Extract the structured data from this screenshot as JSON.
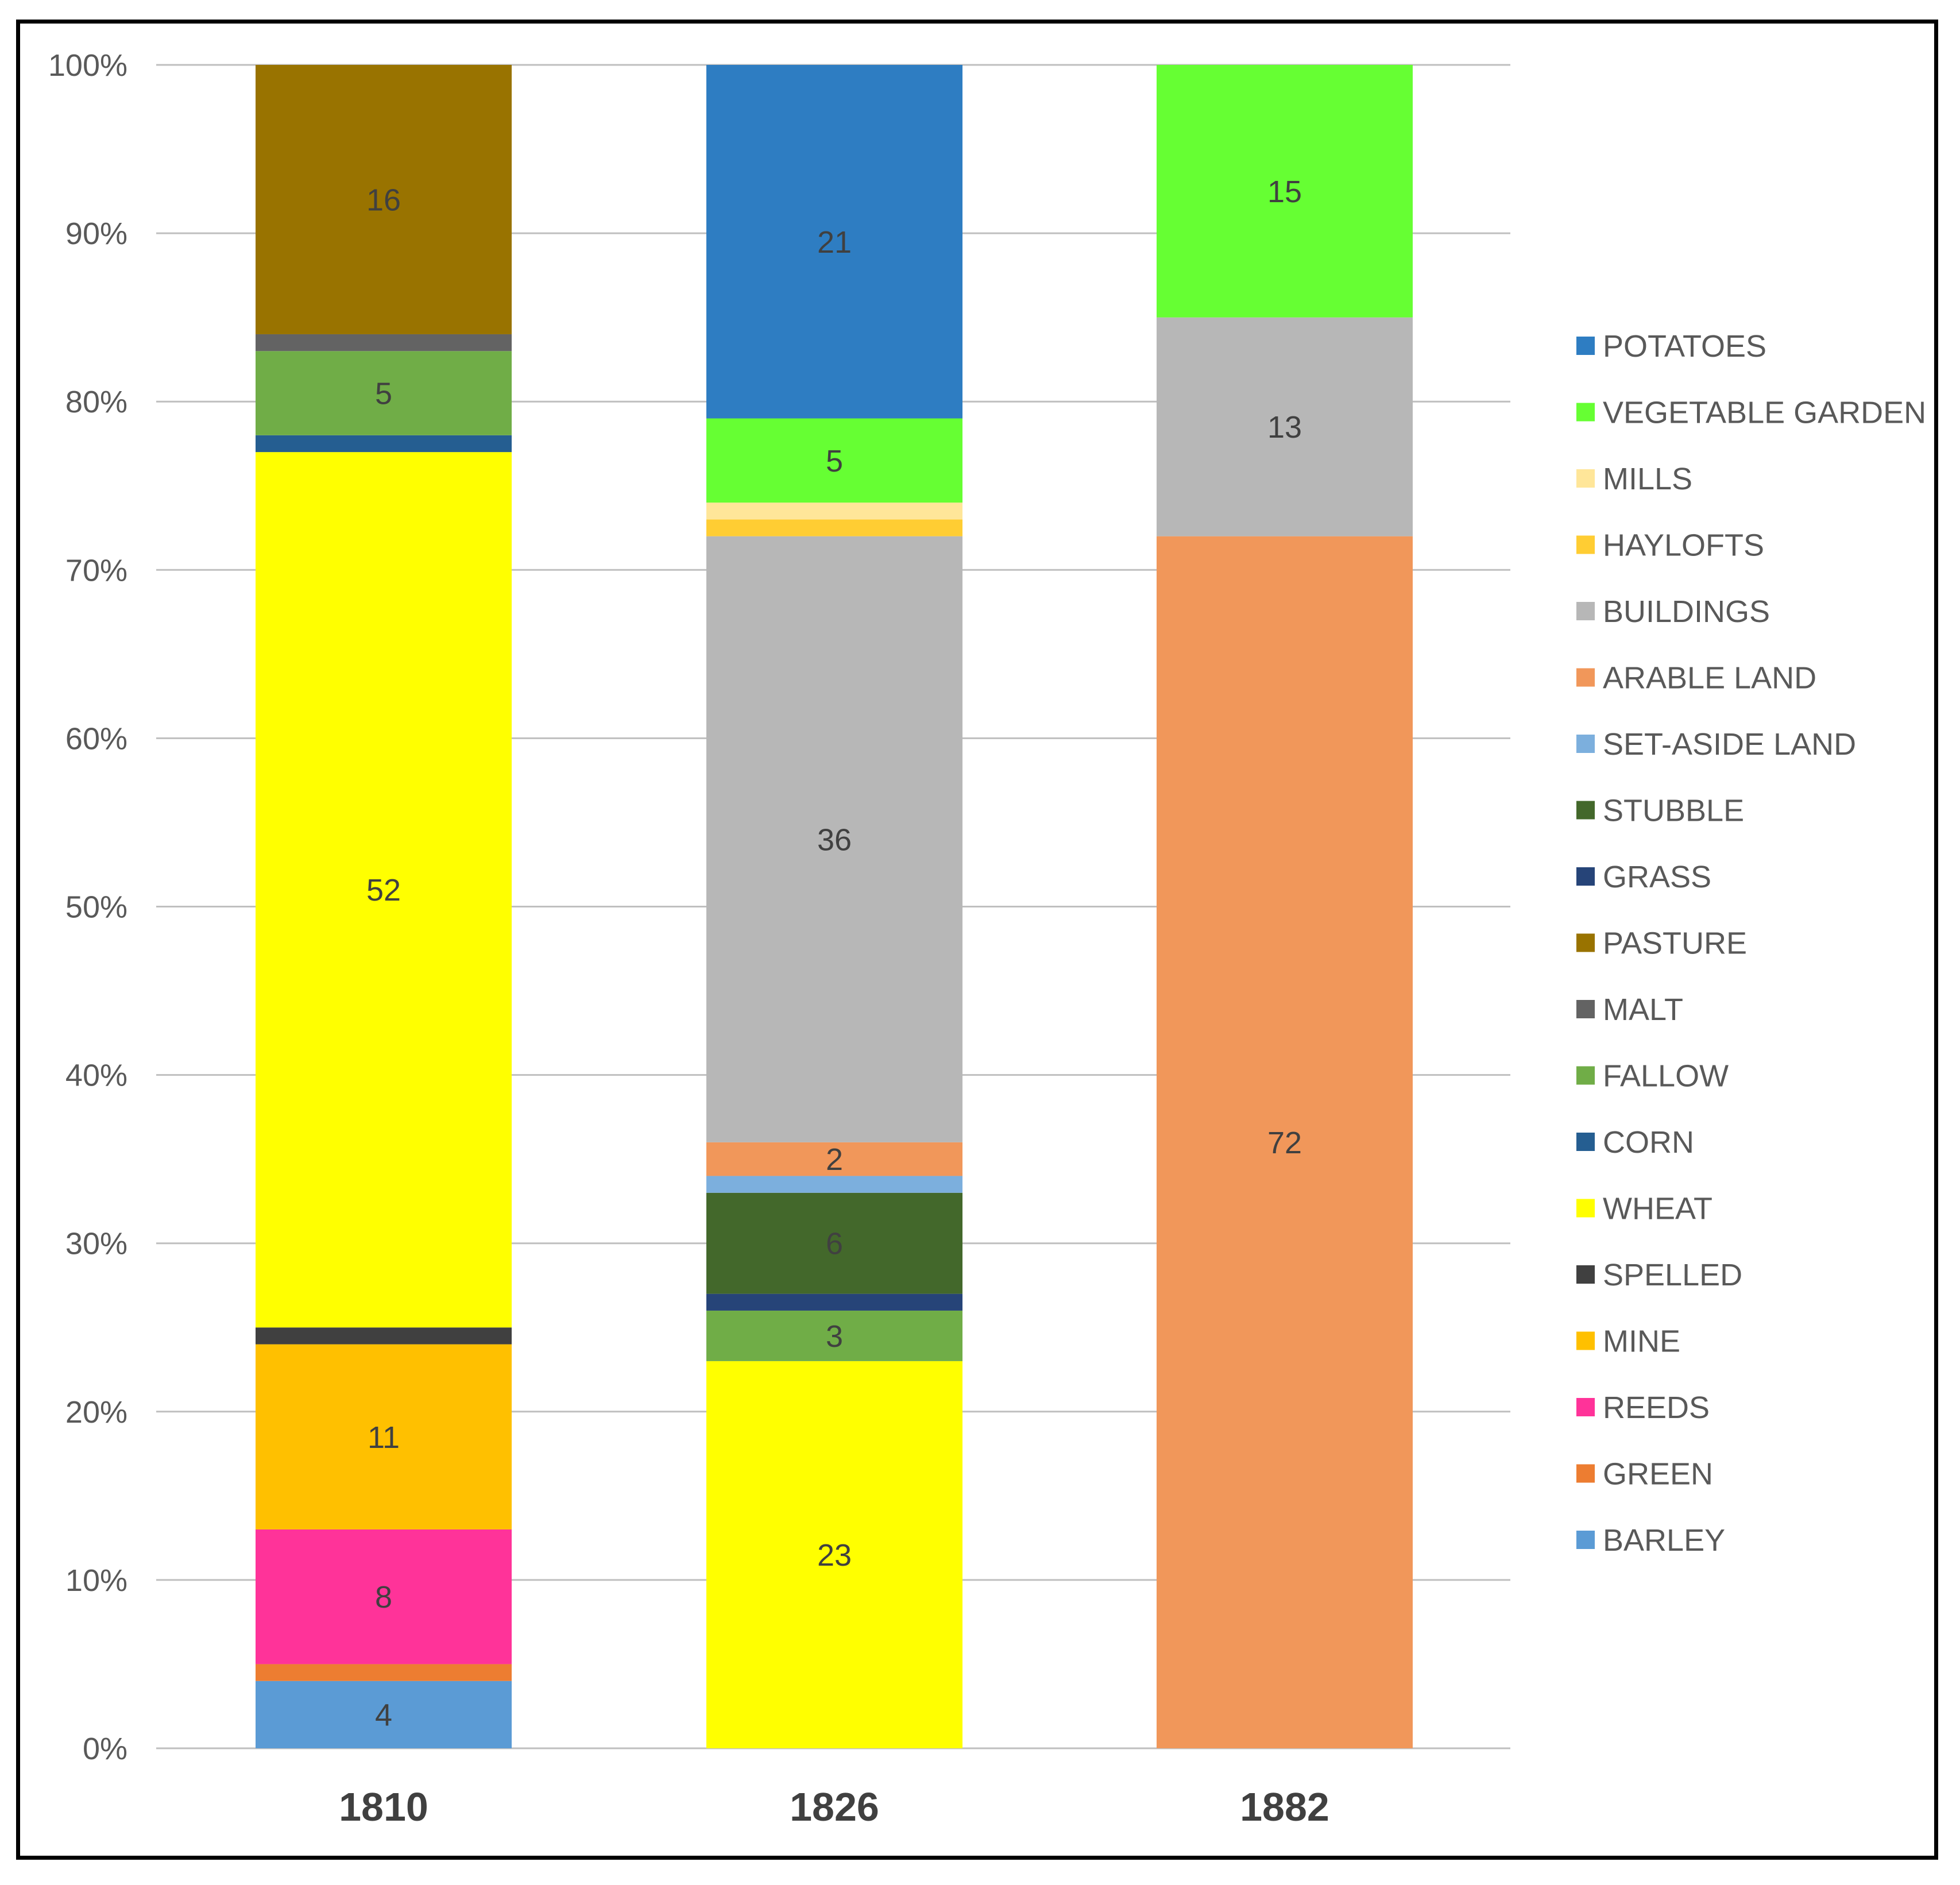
{
  "chart_data": {
    "type": "bar",
    "stacked": true,
    "percent": true,
    "title": "",
    "xlabel": "",
    "ylabel": "",
    "ylim": [
      0,
      100
    ],
    "yticks": [
      "0%",
      "10%",
      "20%",
      "30%",
      "40%",
      "50%",
      "60%",
      "70%",
      "80%",
      "90%",
      "100%"
    ],
    "categories": [
      "1810",
      "1826",
      "1882"
    ],
    "legend_position": "right",
    "legend_order": [
      "POTATOES",
      "VEGETABLE GARDEN",
      "MILLS",
      "HAYLOFTS",
      "BUILDINGS",
      "ARABLE LAND",
      "SET-ASIDE LAND",
      "STUBBLE",
      "GRASS",
      "PASTURE",
      "MALT",
      "FALLOW",
      "CORN",
      "WHEAT",
      "SPELLED",
      "MINE",
      "REEDS",
      "GREEN",
      "BARLEY"
    ],
    "series": [
      {
        "name": "BARLEY",
        "color": "#5b9bd5",
        "values": [
          4,
          0,
          0
        ],
        "labels": [
          "4",
          "",
          ""
        ]
      },
      {
        "name": "GREEN",
        "color": "#ed7d31",
        "values": [
          1,
          0,
          0
        ],
        "labels": [
          "",
          "",
          ""
        ]
      },
      {
        "name": "REEDS",
        "color": "#ff3399",
        "values": [
          8,
          0,
          0
        ],
        "labels": [
          "8",
          "",
          ""
        ]
      },
      {
        "name": "MINE",
        "color": "#ffc000",
        "values": [
          11,
          0,
          0
        ],
        "labels": [
          "11",
          "",
          ""
        ]
      },
      {
        "name": "SPELLED",
        "color": "#404040",
        "values": [
          1,
          0,
          0
        ],
        "labels": [
          "",
          "",
          ""
        ]
      },
      {
        "name": "WHEAT",
        "color": "#ffff00",
        "values": [
          52,
          23,
          0
        ],
        "labels": [
          "52",
          "23",
          ""
        ]
      },
      {
        "name": "CORN",
        "color": "#255e91",
        "values": [
          1,
          0,
          0
        ],
        "labels": [
          "",
          "",
          ""
        ]
      },
      {
        "name": "FALLOW",
        "color": "#70ad47",
        "values": [
          5,
          3,
          0
        ],
        "labels": [
          "5",
          "3",
          ""
        ]
      },
      {
        "name": "MALT",
        "color": "#636363",
        "values": [
          1,
          0,
          0
        ],
        "labels": [
          "",
          "",
          ""
        ]
      },
      {
        "name": "PASTURE",
        "color": "#997300",
        "values": [
          16,
          0,
          0
        ],
        "labels": [
          "16",
          "",
          ""
        ]
      },
      {
        "name": "GRASS",
        "color": "#264478",
        "values": [
          0,
          1,
          0
        ],
        "labels": [
          "",
          "",
          ""
        ]
      },
      {
        "name": "STUBBLE",
        "color": "#43682b",
        "values": [
          0,
          6,
          0
        ],
        "labels": [
          "",
          "6",
          ""
        ]
      },
      {
        "name": "SET-ASIDE LAND",
        "color": "#7cafdd",
        "values": [
          0,
          1,
          0
        ],
        "labels": [
          "",
          "",
          ""
        ]
      },
      {
        "name": "ARABLE LAND",
        "color": "#f1975a",
        "values": [
          0,
          2,
          72
        ],
        "labels": [
          "",
          "2",
          "72"
        ]
      },
      {
        "name": "BUILDINGS",
        "color": "#b7b7b7",
        "values": [
          0,
          36,
          13
        ],
        "labels": [
          "",
          "36",
          "13"
        ]
      },
      {
        "name": "HAYLOFTS",
        "color": "#ffcd33",
        "values": [
          0,
          1,
          0
        ],
        "labels": [
          "",
          "",
          ""
        ]
      },
      {
        "name": "MILLS",
        "color": "#ffe699",
        "values": [
          0,
          1,
          0
        ],
        "labels": [
          "",
          "",
          ""
        ]
      },
      {
        "name": "VEGETABLE GARDEN",
        "color": "#66ff33",
        "values": [
          0,
          5,
          15
        ],
        "labels": [
          "",
          "5",
          "15"
        ]
      },
      {
        "name": "POTATOES",
        "color": "#2e7dc2",
        "values": [
          0,
          21,
          0
        ],
        "labels": [
          "",
          "21",
          ""
        ]
      }
    ]
  }
}
